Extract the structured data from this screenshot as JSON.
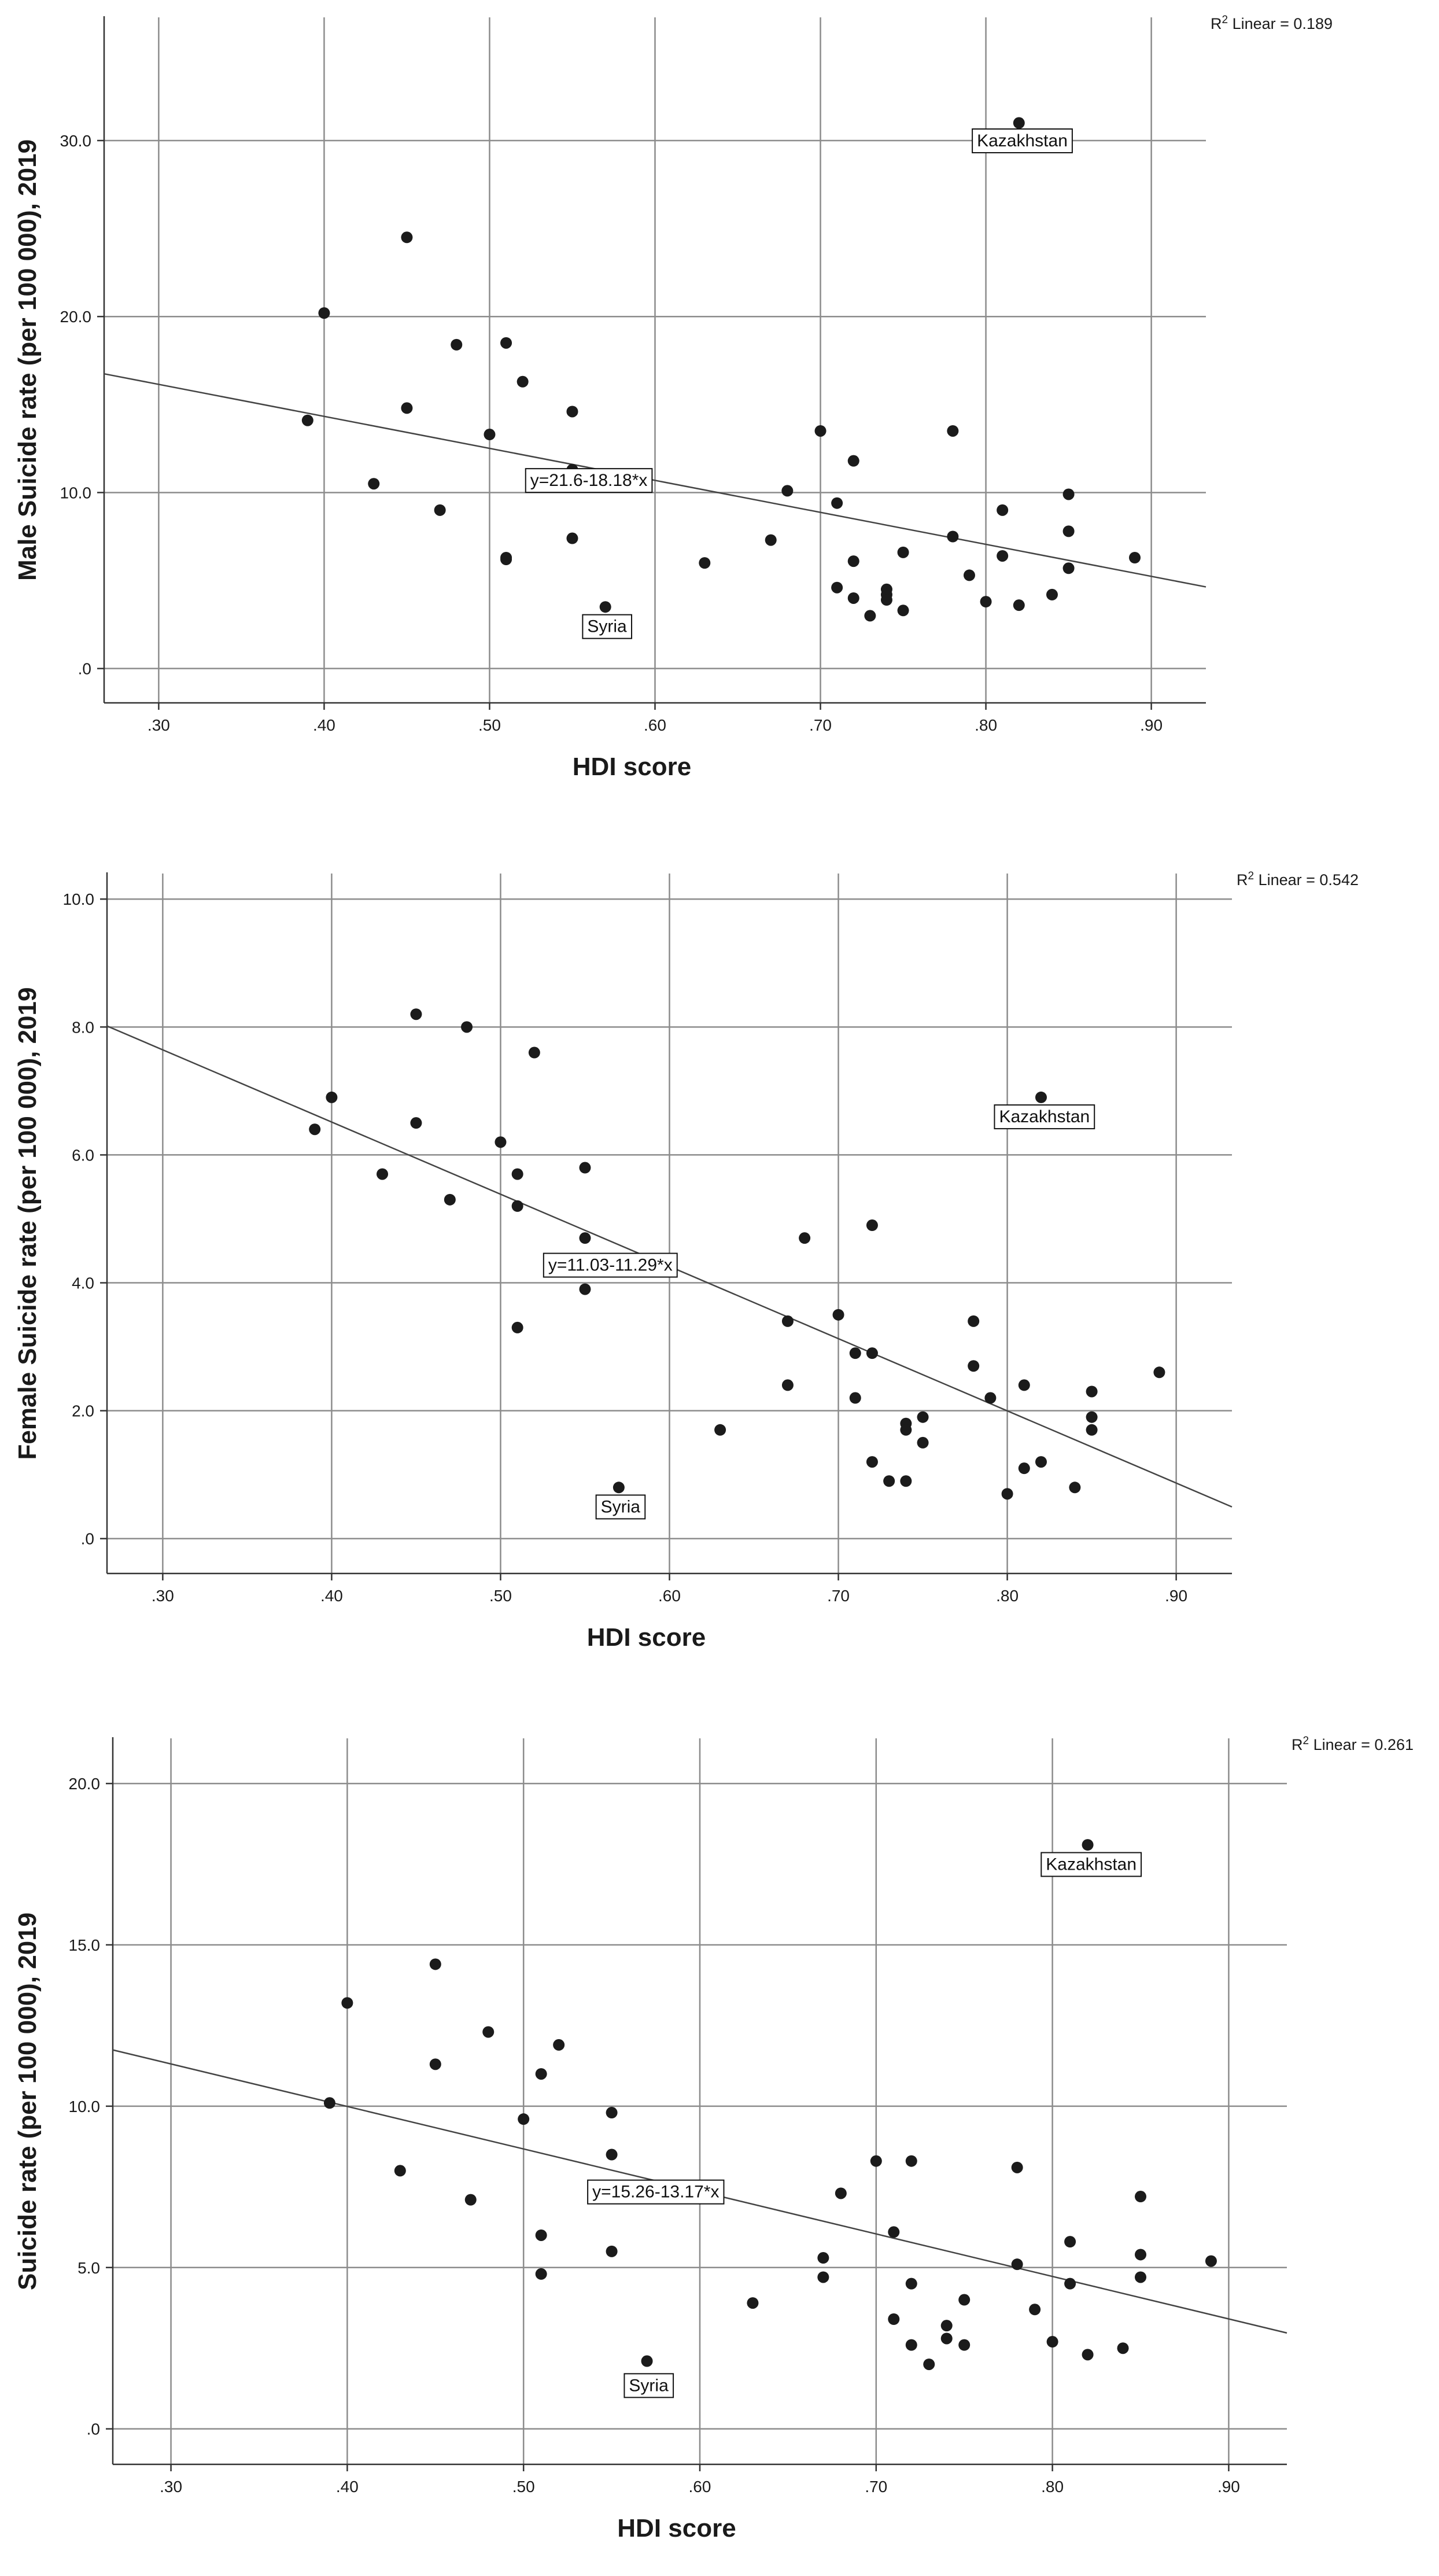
{
  "chart_data": [
    {
      "type": "scatter",
      "xlabel": "HDI score",
      "ylabel": "Male Suicide rate (per 100 000), 2019",
      "xlim": [
        0.267,
        0.933
      ],
      "ylim": [
        -1.95,
        37.0
      ],
      "xticks": [
        0.3,
        0.4,
        0.5,
        0.6,
        0.7,
        0.8,
        0.9
      ],
      "xtick_labels": [
        ".30",
        ".40",
        ".50",
        ".60",
        ".70",
        ".80",
        ".90"
      ],
      "yticks": [
        0,
        10,
        20,
        30
      ],
      "ytick_labels": [
        ".0",
        "10.0",
        "20.0",
        "30.0"
      ],
      "r2_prefix": "R",
      "r2_sup": "2",
      "r2_suffix": " Linear = 0.189",
      "equation": "y=21.6-18.18*x",
      "fit": {
        "intercept": 21.6,
        "slope": -18.18
      },
      "equation_anchor": [
        0.56,
        10.7
      ],
      "labels": [
        {
          "text": "Kazakhstan",
          "x": 0.822,
          "y": 30.0
        },
        {
          "text": "Syria",
          "x": 0.571,
          "y": 2.4
        }
      ],
      "points": [
        [
          0.39,
          14.1
        ],
        [
          0.4,
          20.2
        ],
        [
          0.43,
          10.5
        ],
        [
          0.45,
          24.5
        ],
        [
          0.45,
          14.8
        ],
        [
          0.47,
          9.0
        ],
        [
          0.48,
          18.4
        ],
        [
          0.5,
          13.3
        ],
        [
          0.51,
          18.5
        ],
        [
          0.51,
          6.3
        ],
        [
          0.51,
          6.2
        ],
        [
          0.52,
          16.3
        ],
        [
          0.55,
          14.6
        ],
        [
          0.55,
          11.3
        ],
        [
          0.55,
          7.4
        ],
        [
          0.57,
          3.5
        ],
        [
          0.63,
          6.0
        ],
        [
          0.67,
          7.3
        ],
        [
          0.68,
          10.1
        ],
        [
          0.7,
          13.5
        ],
        [
          0.71,
          9.4
        ],
        [
          0.71,
          4.6
        ],
        [
          0.72,
          11.8
        ],
        [
          0.72,
          6.1
        ],
        [
          0.72,
          4.0
        ],
        [
          0.73,
          3.0
        ],
        [
          0.74,
          4.5
        ],
        [
          0.74,
          4.2
        ],
        [
          0.74,
          3.9
        ],
        [
          0.75,
          6.6
        ],
        [
          0.75,
          3.3
        ],
        [
          0.78,
          13.5
        ],
        [
          0.78,
          7.5
        ],
        [
          0.79,
          5.3
        ],
        [
          0.8,
          3.8
        ],
        [
          0.81,
          9.0
        ],
        [
          0.81,
          6.4
        ],
        [
          0.82,
          31.0
        ],
        [
          0.82,
          3.6
        ],
        [
          0.84,
          4.2
        ],
        [
          0.85,
          9.9
        ],
        [
          0.85,
          7.8
        ],
        [
          0.85,
          5.7
        ],
        [
          0.89,
          6.3
        ]
      ]
    },
    {
      "type": "scatter",
      "xlabel": "HDI score",
      "ylabel": "Female Suicide rate (per 100 000), 2019",
      "xlim": [
        0.267,
        0.933
      ],
      "ylim": [
        -0.545,
        10.4
      ],
      "xticks": [
        0.3,
        0.4,
        0.5,
        0.6,
        0.7,
        0.8,
        0.9
      ],
      "xtick_labels": [
        ".30",
        ".40",
        ".50",
        ".60",
        ".70",
        ".80",
        ".90"
      ],
      "yticks": [
        0,
        2,
        4,
        6,
        8,
        10
      ],
      "ytick_labels": [
        ".0",
        "2.0",
        "4.0",
        "6.0",
        "8.0",
        "10.0"
      ],
      "r2_prefix": "R",
      "r2_sup": "2",
      "r2_suffix": " Linear = 0.542",
      "equation": "y=11.03-11.29*x",
      "fit": {
        "intercept": 11.03,
        "slope": -11.29
      },
      "equation_anchor": [
        0.565,
        4.28
      ],
      "labels": [
        {
          "text": "Kazakhstan",
          "x": 0.822,
          "y": 6.6
        },
        {
          "text": "Syria",
          "x": 0.571,
          "y": 0.5
        }
      ],
      "points": [
        [
          0.39,
          6.4
        ],
        [
          0.4,
          6.9
        ],
        [
          0.43,
          5.7
        ],
        [
          0.45,
          8.2
        ],
        [
          0.45,
          6.5
        ],
        [
          0.47,
          5.3
        ],
        [
          0.48,
          8.0
        ],
        [
          0.5,
          6.2
        ],
        [
          0.51,
          5.7
        ],
        [
          0.51,
          5.2
        ],
        [
          0.51,
          3.3
        ],
        [
          0.52,
          7.6
        ],
        [
          0.55,
          5.8
        ],
        [
          0.55,
          4.7
        ],
        [
          0.55,
          3.9
        ],
        [
          0.57,
          0.8
        ],
        [
          0.63,
          1.7
        ],
        [
          0.67,
          3.4
        ],
        [
          0.67,
          2.4
        ],
        [
          0.68,
          4.7
        ],
        [
          0.7,
          3.5
        ],
        [
          0.71,
          2.9
        ],
        [
          0.71,
          2.2
        ],
        [
          0.72,
          4.9
        ],
        [
          0.72,
          2.9
        ],
        [
          0.72,
          1.2
        ],
        [
          0.73,
          0.9
        ],
        [
          0.74,
          1.8
        ],
        [
          0.74,
          1.7
        ],
        [
          0.74,
          0.9
        ],
        [
          0.75,
          1.9
        ],
        [
          0.75,
          1.5
        ],
        [
          0.78,
          3.4
        ],
        [
          0.78,
          2.7
        ],
        [
          0.79,
          2.2
        ],
        [
          0.8,
          0.7
        ],
        [
          0.81,
          2.4
        ],
        [
          0.81,
          1.1
        ],
        [
          0.82,
          6.9
        ],
        [
          0.82,
          1.2
        ],
        [
          0.84,
          0.8
        ],
        [
          0.85,
          2.3
        ],
        [
          0.85,
          1.9
        ],
        [
          0.85,
          1.7
        ],
        [
          0.89,
          2.6
        ]
      ]
    },
    {
      "type": "scatter",
      "xlabel": "HDI score",
      "ylabel": "Suicide rate (per 100 000), 2019",
      "xlim": [
        0.267,
        0.933
      ],
      "ylim": [
        -1.1,
        21.4
      ],
      "xticks": [
        0.3,
        0.4,
        0.5,
        0.6,
        0.7,
        0.8,
        0.9
      ],
      "xtick_labels": [
        ".30",
        ".40",
        ".50",
        ".60",
        ".70",
        ".80",
        ".90"
      ],
      "yticks": [
        0,
        5,
        10,
        15,
        20
      ],
      "ytick_labels": [
        ".0",
        "5.0",
        "10.0",
        "15.0",
        "20.0"
      ],
      "r2_prefix": "R",
      "r2_sup": "2",
      "r2_suffix": " Linear = 0.261",
      "equation": "y=15.26-13.17*x",
      "fit": {
        "intercept": 15.26,
        "slope": -13.17
      },
      "equation_anchor": [
        0.575,
        7.35
      ],
      "labels": [
        {
          "text": "Kazakhstan",
          "x": 0.822,
          "y": 17.5
        },
        {
          "text": "Syria",
          "x": 0.571,
          "y": 1.35
        }
      ],
      "points": [
        [
          0.39,
          10.1
        ],
        [
          0.4,
          13.2
        ],
        [
          0.43,
          8.0
        ],
        [
          0.45,
          14.4
        ],
        [
          0.45,
          11.3
        ],
        [
          0.47,
          7.1
        ],
        [
          0.48,
          12.3
        ],
        [
          0.5,
          9.6
        ],
        [
          0.51,
          11.0
        ],
        [
          0.51,
          6.0
        ],
        [
          0.51,
          4.8
        ],
        [
          0.52,
          11.9
        ],
        [
          0.55,
          9.8
        ],
        [
          0.55,
          8.5
        ],
        [
          0.55,
          5.5
        ],
        [
          0.57,
          2.1
        ],
        [
          0.63,
          3.9
        ],
        [
          0.67,
          5.3
        ],
        [
          0.67,
          4.7
        ],
        [
          0.68,
          7.3
        ],
        [
          0.7,
          8.3
        ],
        [
          0.71,
          6.1
        ],
        [
          0.71,
          3.4
        ],
        [
          0.72,
          8.3
        ],
        [
          0.72,
          4.5
        ],
        [
          0.72,
          2.6
        ],
        [
          0.73,
          2.0
        ],
        [
          0.74,
          3.2
        ],
        [
          0.74,
          2.8
        ],
        [
          0.75,
          4.0
        ],
        [
          0.75,
          2.6
        ],
        [
          0.78,
          8.1
        ],
        [
          0.78,
          5.1
        ],
        [
          0.79,
          3.7
        ],
        [
          0.8,
          2.7
        ],
        [
          0.81,
          5.8
        ],
        [
          0.81,
          4.5
        ],
        [
          0.82,
          18.1
        ],
        [
          0.82,
          2.3
        ],
        [
          0.84,
          2.5
        ],
        [
          0.85,
          7.2
        ],
        [
          0.85,
          5.4
        ],
        [
          0.85,
          4.7
        ],
        [
          0.89,
          5.2
        ]
      ]
    }
  ]
}
